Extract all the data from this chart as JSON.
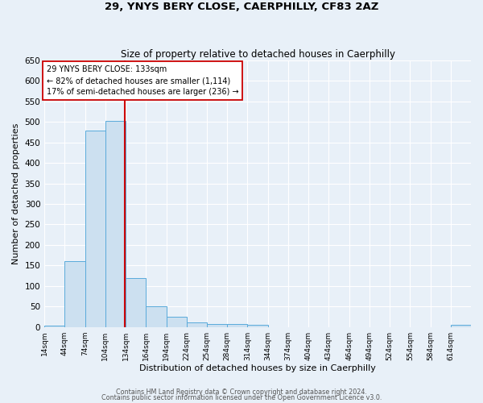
{
  "title": "29, YNYS BERY CLOSE, CAERPHILLY, CF83 2AZ",
  "subtitle": "Size of property relative to detached houses in Caerphilly",
  "xlabel": "Distribution of detached houses by size in Caerphilly",
  "ylabel": "Number of detached properties",
  "bar_color_face": "#cce0f0",
  "bar_color_edge": "#5aabdb",
  "background_color": "#e8f0f8",
  "grid_color": "#ffffff",
  "bin_edges": [
    14,
    44,
    74,
    104,
    134,
    164,
    194,
    224,
    254,
    284,
    314,
    344,
    374,
    404,
    434,
    464,
    494,
    524,
    554,
    584,
    614,
    644
  ],
  "bin_labels": [
    "14sqm",
    "44sqm",
    "74sqm",
    "104sqm",
    "134sqm",
    "164sqm",
    "194sqm",
    "224sqm",
    "254sqm",
    "284sqm",
    "314sqm",
    "344sqm",
    "374sqm",
    "404sqm",
    "434sqm",
    "464sqm",
    "494sqm",
    "524sqm",
    "554sqm",
    "584sqm",
    "614sqm"
  ],
  "counts": [
    3,
    160,
    478,
    503,
    120,
    50,
    25,
    12,
    7,
    8,
    5,
    0,
    0,
    0,
    0,
    0,
    0,
    0,
    0,
    0,
    5
  ],
  "ylim": [
    0,
    650
  ],
  "yticks": [
    0,
    50,
    100,
    150,
    200,
    250,
    300,
    350,
    400,
    450,
    500,
    550,
    600,
    650
  ],
  "vline_x": 133,
  "vline_color": "#cc0000",
  "annotation_text": "29 YNYS BERY CLOSE: 133sqm\n← 82% of detached houses are smaller (1,114)\n17% of semi-detached houses are larger (236) →",
  "annotation_box_color": "#ffffff",
  "annotation_box_edge": "#cc0000",
  "footer_line1": "Contains HM Land Registry data © Crown copyright and database right 2024.",
  "footer_line2": "Contains public sector information licensed under the Open Government Licence v3.0."
}
